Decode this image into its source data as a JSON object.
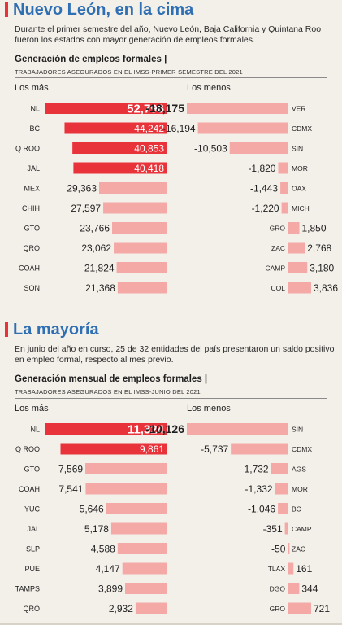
{
  "section1": {
    "title": "Nuevo León, en la cima",
    "intro": "Durante el primer semestre del año, Nuevo León, Baja California y Quintana Roo fueron los estados con mayor generación de empleos formales.",
    "subtitle": "Generación de empleos formales |",
    "source": "TRABAJADORES ASEGURADOS EN EL IMSS-PRIMER SEMESTRE DEL 2021",
    "left_header": "Los más",
    "right_header": "Los menos"
  },
  "section2": {
    "title": "La mayoría",
    "intro": "En junio del año en curso, 25 de 32 entidades del país presentaron un saldo positivo en empleo formal, respecto al mes previo.",
    "subtitle": "Generación mensual de empleos formales |",
    "source": "TRABAJADORES ASEGURADOS EN EL IMSS-JUNIO DEL 2021",
    "left_header": "Los más",
    "right_header": "Los menos"
  },
  "colors": {
    "title": "#2f6fb3",
    "bar_top": "#e8333a",
    "bar_low": "#f4a9a6",
    "text": "#1f1f1f",
    "background": "#f3efe9"
  },
  "chart_data": [
    {
      "type": "bar",
      "title": "Generación de empleos formales",
      "panel": "Los más",
      "categories": [
        "NL",
        "BC",
        "Q ROO",
        "JAL",
        "MEX",
        "CHIH",
        "GTO",
        "QRO",
        "COAH",
        "SON"
      ],
      "values": [
        52796,
        44242,
        40853,
        40418,
        29363,
        27597,
        23766,
        23062,
        21824,
        21368
      ],
      "labels": [
        "52,796",
        "44,242",
        "40,853",
        "40,418",
        "29,363",
        "27,597",
        "23,766",
        "23,062",
        "21,824",
        "21,368"
      ],
      "highlight": 4
    },
    {
      "type": "bar",
      "title": "Generación de empleos formales",
      "panel": "Los menos",
      "categories": [
        "VER",
        "CDMX",
        "SIN",
        "MOR",
        "OAX",
        "MICH",
        "GRO",
        "ZAC",
        "CAMP",
        "COL"
      ],
      "values": [
        -18175,
        -16194,
        -10503,
        -1820,
        -1443,
        -1220,
        1850,
        2768,
        3180,
        3836
      ],
      "labels": [
        "-18,175",
        "-16,194",
        "-10,503",
        "-1,820",
        "-1,443",
        "-1,220",
        "1,850",
        "2,768",
        "3,180",
        "3,836"
      ]
    },
    {
      "type": "bar",
      "title": "Generación mensual de empleos formales",
      "panel": "Los más",
      "categories": [
        "NL",
        "Q ROO",
        "GTO",
        "COAH",
        "YUC",
        "JAL",
        "SLP",
        "PUE",
        "TAMPS",
        "QRO"
      ],
      "values": [
        11324,
        9861,
        7569,
        7541,
        5646,
        5178,
        4588,
        4147,
        3899,
        2932
      ],
      "labels": [
        "11,324",
        "9,861",
        "7,569",
        "7,541",
        "5,646",
        "5,178",
        "4,588",
        "4,147",
        "3,899",
        "2,932"
      ],
      "highlight": 2
    },
    {
      "type": "bar",
      "title": "Generación mensual de empleos formales",
      "panel": "Los menos",
      "categories": [
        "SIN",
        "CDMX",
        "AGS",
        "MOR",
        "BC",
        "CAMP",
        "ZAC",
        "TLAX",
        "DGO",
        "GRO"
      ],
      "values": [
        -10126,
        -5737,
        -1732,
        -1332,
        -1046,
        -351,
        -50,
        161,
        344,
        721
      ],
      "labels": [
        "-10,126",
        "-5,737",
        "-1,732",
        "-1,332",
        "-1,046",
        "-351",
        "-50",
        "161",
        "344",
        "721"
      ]
    }
  ]
}
